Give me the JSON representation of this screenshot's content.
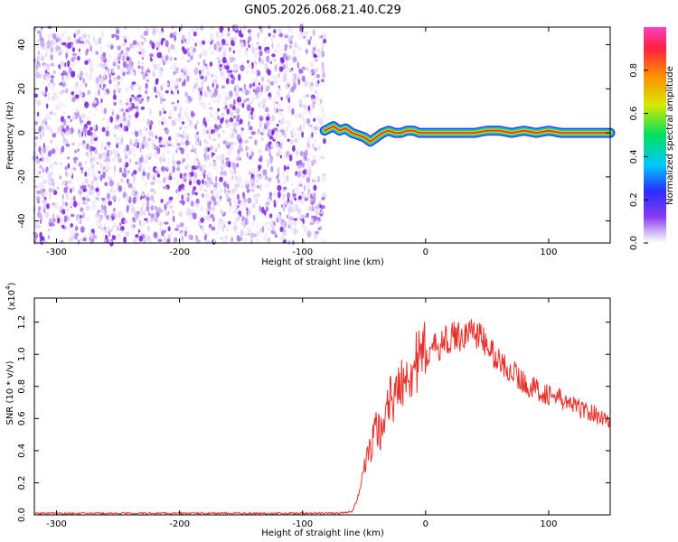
{
  "figure": {
    "title": "GN05.2026.068.21.40.C29"
  },
  "colors": {
    "axis": "#000000",
    "snr_line": "#e8302a",
    "noise_purple": "#7b1fe0",
    "spectrum_ridge": "#e8302a",
    "colormap": [
      "#ffffff",
      "#d9c8f5",
      "#8a3cf0",
      "#2a2cff",
      "#00c8ff",
      "#00e060",
      "#d8e800",
      "#ff8a00",
      "#ff2040",
      "#ff40c0"
    ]
  },
  "chart_data": [
    {
      "type": "heatmap",
      "xlabel": "Height of straight line (km)",
      "ylabel": "Frequency (Hz)",
      "xlim": [
        -318,
        150
      ],
      "ylim": [
        -50,
        48
      ],
      "xticks": [
        -300,
        -200,
        -100,
        0,
        100
      ],
      "yticks": [
        -40,
        -20,
        0,
        20,
        40
      ],
      "grid": false,
      "noise_region_x": [
        -318,
        -82
      ],
      "ridge": {
        "x": [
          -82,
          -75,
          -70,
          -65,
          -60,
          -55,
          -50,
          -45,
          -40,
          -35,
          -30,
          -25,
          -20,
          -15,
          -10,
          -5,
          0,
          10,
          20,
          30,
          40,
          50,
          60,
          70,
          80,
          90,
          100,
          110,
          120,
          130,
          140,
          150
        ],
        "y": [
          1,
          3,
          1,
          2,
          0,
          -1,
          -2,
          -4,
          -2,
          0,
          1,
          0,
          0,
          1,
          1,
          0,
          0,
          0,
          0,
          0,
          0,
          1,
          1,
          0,
          1,
          0,
          1,
          0,
          0,
          0,
          0,
          0
        ]
      },
      "colorbar": {
        "label": "Normalized spectral amplitude",
        "range": [
          0,
          1
        ],
        "ticks": [
          "0.0",
          "0.2",
          "0.4",
          "0.6",
          "0.8"
        ]
      }
    },
    {
      "type": "line",
      "xlabel": "Height of straight line (km)",
      "ylabel": "SNR (10 * v/v)",
      "scale_label": "(x10",
      "scale_exp": "4",
      "xlim": [
        -318,
        150
      ],
      "ylim": [
        0,
        1.35
      ],
      "xticks": [
        -300,
        -200,
        -100,
        0,
        100
      ],
      "yticks": [
        "0.0",
        "0.2",
        "0.4",
        "0.6",
        "0.8",
        "1.0",
        "1.2"
      ],
      "grid": false,
      "series": [
        {
          "x": [
            -318,
            -250,
            -150,
            -70,
            -60,
            -55,
            -50,
            -45,
            -40,
            -35,
            -30,
            -25,
            -20,
            -15,
            -10,
            -5,
            0,
            10,
            20,
            30,
            40,
            50,
            60,
            70,
            80,
            90,
            100,
            110,
            120,
            130,
            140,
            150
          ],
          "y": [
            0.01,
            0.01,
            0.01,
            0.01,
            0.02,
            0.1,
            0.3,
            0.4,
            0.55,
            0.5,
            0.75,
            0.7,
            0.85,
            0.9,
            0.92,
            0.95,
            1.0,
            1.05,
            1.1,
            1.12,
            1.15,
            1.05,
            0.95,
            0.9,
            0.82,
            0.78,
            0.75,
            0.72,
            0.68,
            0.65,
            0.62,
            0.58
          ]
        }
      ]
    }
  ]
}
